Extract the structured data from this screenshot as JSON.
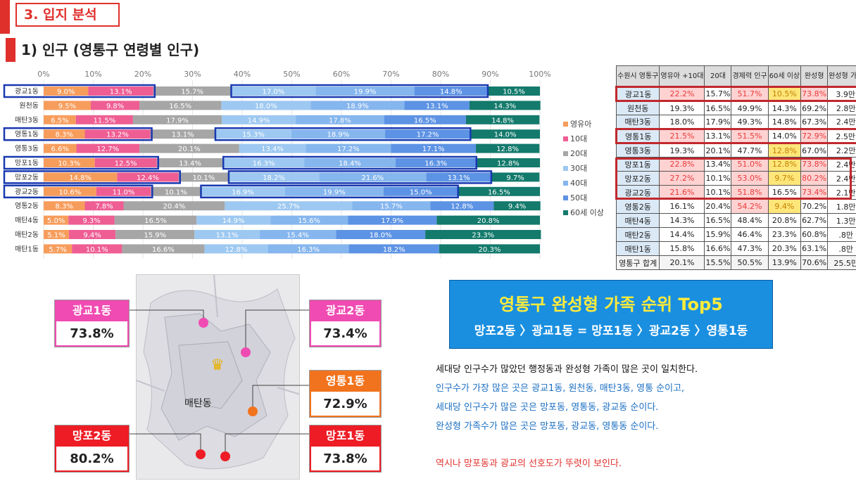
{
  "section": {
    "number_title": "3. 입지 분석",
    "sub_title": "1) 인구 (영통구 연령별 인구)"
  },
  "chart_data": {
    "type": "bar",
    "orientation": "horizontal-stacked-100",
    "x_ticks": [
      "0%",
      "10%",
      "20%",
      "30%",
      "40%",
      "50%",
      "60%",
      "70%",
      "80%",
      "90%",
      "100%"
    ],
    "categories": [
      "광교1동",
      "원천동",
      "매탄3동",
      "영통1동",
      "영통3동",
      "망포1동",
      "망포2동",
      "광교2동",
      "영통2동",
      "매탄4동",
      "매탄2동",
      "매탄1동"
    ],
    "series": [
      {
        "name": "영유아",
        "color": "#f79d5c",
        "values": [
          9.0,
          9.5,
          6.5,
          8.3,
          6.6,
          10.3,
          14.8,
          10.6,
          8.3,
          5.0,
          5.1,
          5.7
        ]
      },
      {
        "name": "10대",
        "color": "#ee5e93",
        "values": [
          13.1,
          9.8,
          11.5,
          13.2,
          12.7,
          12.5,
          12.4,
          11.0,
          7.8,
          9.3,
          9.4,
          10.1
        ]
      },
      {
        "name": "20대",
        "color": "#a6a6a6",
        "values": [
          15.7,
          16.5,
          17.9,
          13.1,
          20.1,
          13.4,
          10.1,
          10.1,
          20.4,
          16.5,
          15.9,
          16.6
        ]
      },
      {
        "name": "30대",
        "color": "#9dc8f1",
        "values": [
          17.0,
          18.0,
          14.9,
          15.3,
          13.4,
          16.3,
          18.2,
          16.9,
          25.7,
          14.9,
          13.1,
          12.8
        ]
      },
      {
        "name": "40대",
        "color": "#86b6ee",
        "values": [
          19.9,
          18.9,
          17.8,
          18.9,
          17.2,
          18.4,
          21.6,
          19.9,
          15.7,
          15.6,
          15.4,
          16.3
        ]
      },
      {
        "name": "50대",
        "color": "#5d93e4",
        "values": [
          14.8,
          13.1,
          16.5,
          17.2,
          17.1,
          16.3,
          13.1,
          15.0,
          12.8,
          17.9,
          18.0,
          18.2
        ]
      },
      {
        "name": "60세 이상",
        "color": "#137a6c",
        "values": [
          10.5,
          14.3,
          14.8,
          14.0,
          12.8,
          12.8,
          9.7,
          16.5,
          9.4,
          20.8,
          23.3,
          20.3
        ]
      }
    ],
    "highlighted_rows": [
      "광교1동",
      "영통1동",
      "망포1동",
      "망포2동",
      "광교2동"
    ],
    "xlim": [
      0,
      100
    ]
  },
  "table": {
    "headers": [
      "수원시 영통구",
      "영유아 +10대",
      "20대",
      "경제력 인구",
      "60세 이상",
      "완성형",
      "완성형 가족"
    ],
    "rows": [
      [
        "광교1동",
        "22.2%",
        "15.7%",
        "51.7%",
        "10.5%",
        "73.8%",
        "3.9만"
      ],
      [
        "원천동",
        "19.3%",
        "16.5%",
        "49.9%",
        "14.3%",
        "69.2%",
        "2.8만"
      ],
      [
        "매탄3동",
        "18.0%",
        "17.9%",
        "49.3%",
        "14.8%",
        "67.3%",
        "2.4만"
      ],
      [
        "영통1동",
        "21.5%",
        "13.1%",
        "51.5%",
        "14.0%",
        "72.9%",
        "2.5만"
      ],
      [
        "영통3동",
        "19.3%",
        "20.1%",
        "47.7%",
        "12.8%",
        "67.0%",
        "2.2만"
      ],
      [
        "망포1동",
        "22.8%",
        "13.4%",
        "51.0%",
        "12.8%",
        "73.8%",
        "2.4만"
      ],
      [
        "망포2동",
        "27.2%",
        "10.1%",
        "53.0%",
        "9.7%",
        "80.2%",
        "2.4만"
      ],
      [
        "광교2동",
        "21.6%",
        "10.1%",
        "51.8%",
        "16.5%",
        "73.4%",
        "2.1만"
      ],
      [
        "영통2동",
        "16.1%",
        "20.4%",
        "54.2%",
        "9.4%",
        "70.2%",
        "1.8만"
      ],
      [
        "매탄4동",
        "14.3%",
        "16.5%",
        "48.4%",
        "20.8%",
        "62.7%",
        "1.3만"
      ],
      [
        "매탄2동",
        "14.4%",
        "15.9%",
        "46.4%",
        "23.3%",
        "60.8%",
        ".8만"
      ],
      [
        "매탄1동",
        "15.8%",
        "16.6%",
        "47.3%",
        "20.3%",
        "63.1%",
        ".8만"
      ],
      [
        "영통구 합계",
        "20.1%",
        "15.5%",
        "50.5%",
        "13.9%",
        "70.6%",
        "25.5만"
      ]
    ],
    "cell_styles": {
      "0": [
        "",
        "pk",
        "",
        "pk",
        "yl",
        "pk",
        ""
      ],
      "3": [
        "",
        "pk",
        "",
        "pk",
        "",
        "pk",
        ""
      ],
      "4": [
        "",
        "",
        "",
        "",
        "yl",
        "",
        ""
      ],
      "5": [
        "",
        "pk",
        "",
        "pk",
        "yl",
        "pk",
        ""
      ],
      "6": [
        "",
        "pk",
        "",
        "pk",
        "yl",
        "pk",
        ""
      ],
      "7": [
        "",
        "pk",
        "",
        "pk",
        "",
        "pk",
        ""
      ],
      "8": [
        "",
        "",
        "",
        "pk",
        "yl",
        "",
        ""
      ]
    }
  },
  "map": {
    "center_label": "매탄동",
    "cards": [
      {
        "name": "광교1동",
        "value": "73.8%",
        "color": "#f04bb2"
      },
      {
        "name": "광교2동",
        "value": "73.4%",
        "color": "#f04bb2"
      },
      {
        "name": "영통1동",
        "value": "72.9%",
        "color": "#f2731d"
      },
      {
        "name": "망포2동",
        "value": "80.2%",
        "color": "#ee1c25"
      },
      {
        "name": "망포1동",
        "value": "73.8%",
        "color": "#ee1c25"
      }
    ]
  },
  "top5": {
    "title": "영통구 완성형 가족 순위 Top5",
    "ranking": "망포2동 〉광교1동 = 망포1동 〉광교2동 〉영통1동"
  },
  "notes": {
    "line1": "세대당 인구수가 많았던 행정동과 완성형 가족이 많은 곳이 일치한다.",
    "line2": "인구수가 가장 많은 곳은 광교1동, 원천동, 매탄3동, 영통 순이고,",
    "line3": "세대당 인구수가 많은 곳은 망포동, 영통동, 광교동 순이다.",
    "line4": "완성형 가족수가 많은 곳은 망포동, 광교동, 영통동 순이다.",
    "conclusion": "역시나 망포동과 광교의 선호도가 뚜렷이 보인다."
  }
}
